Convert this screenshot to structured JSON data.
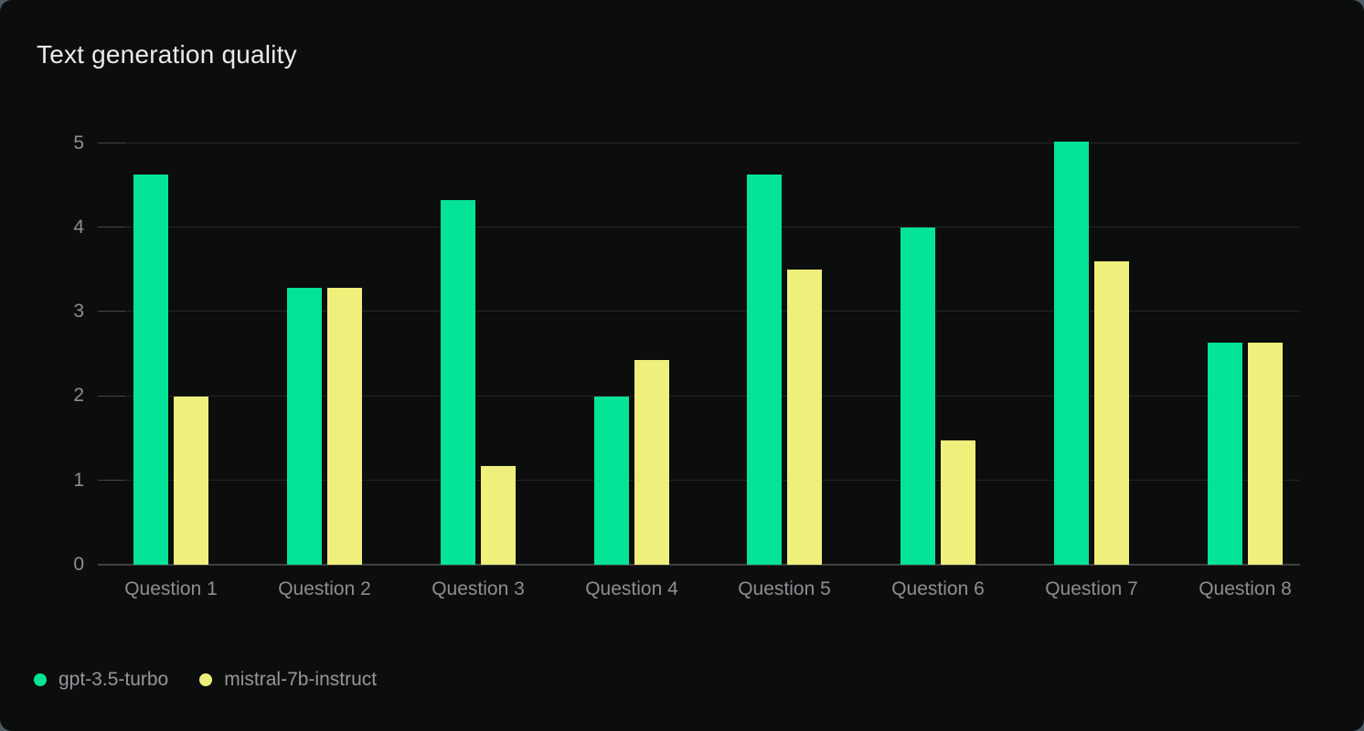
{
  "chart_data": {
    "type": "bar",
    "title": "Text generation quality",
    "categories": [
      "Question 1",
      "Question 2",
      "Question 3",
      "Question 4",
      "Question 5",
      "Question 6",
      "Question 7",
      "Question 8"
    ],
    "series": [
      {
        "name": "gpt-3.5-turbo",
        "color": "#04e497",
        "values": [
          4.63,
          3.29,
          4.33,
          2.0,
          4.63,
          4.0,
          5.02,
          2.63
        ]
      },
      {
        "name": "mistral-7b-instruct",
        "color": "#eef07b",
        "values": [
          2.0,
          3.29,
          1.17,
          2.43,
          3.5,
          1.47,
          3.6,
          2.63
        ]
      }
    ],
    "xlabel": "",
    "ylabel": "",
    "ylim": [
      0,
      5
    ],
    "yticks": [
      "0",
      "1",
      "2",
      "3",
      "4",
      "5"
    ],
    "grid": "horizontal",
    "legend_position": "bottom-left",
    "colors": {
      "card_background": "#0c0d0d",
      "gridline": "#252626",
      "axis_line": "#3f4041",
      "tick_text": "#8c8e92",
      "title_text": "#eaebec",
      "legend_text": "#95979b"
    }
  }
}
